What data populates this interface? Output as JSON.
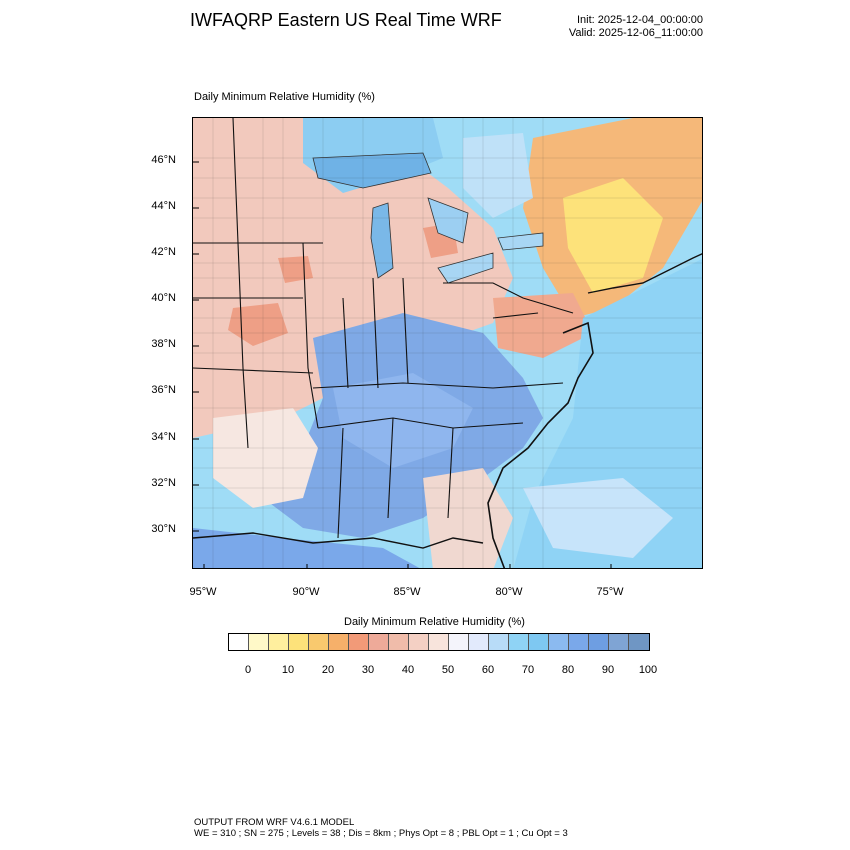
{
  "header": {
    "title": "IWFAQRP Eastern US Real Time WRF",
    "init": "Init: 2025-12-04_00:00:00",
    "valid": "Valid: 2025-12-06_11:00:00"
  },
  "plot_label": "Daily Minimum Relative Humidity   (%)",
  "map": {
    "lat_labels": [
      "46°N",
      "44°N",
      "42°N",
      "40°N",
      "38°N",
      "36°N",
      "34°N",
      "32°N",
      "30°N"
    ],
    "lon_labels": [
      "95°W",
      "90°W",
      "85°W",
      "80°W",
      "75°W"
    ]
  },
  "colorbar": {
    "title": "Daily Minimum Relative Humidity  (%)",
    "colors": [
      "#ffffff",
      "#fff9c8",
      "#ffef9e",
      "#fde27a",
      "#f9c96e",
      "#f6b06a",
      "#f29a78",
      "#eeaa99",
      "#f0bcaa",
      "#f4d0c4",
      "#f8e4dc",
      "#f4f4fb",
      "#e2eafc",
      "#b8dcf8",
      "#8fd3f5",
      "#7ec8f2",
      "#8bbaf0",
      "#7aa8ea",
      "#6e9ee2",
      "#7fa4d4",
      "#6f96c4"
    ],
    "labels": [
      "0",
      "10",
      "20",
      "30",
      "40",
      "50",
      "60",
      "70",
      "80",
      "90",
      "100"
    ]
  },
  "footer": {
    "line1": "OUTPUT FROM WRF V4.6.1 MODEL",
    "line2": "WE = 310 ; SN = 275 ; Levels = 38 ; Dis = 8km ; Phys Opt = 8 ; PBL Opt = 1 ; Cu Opt = 3"
  }
}
